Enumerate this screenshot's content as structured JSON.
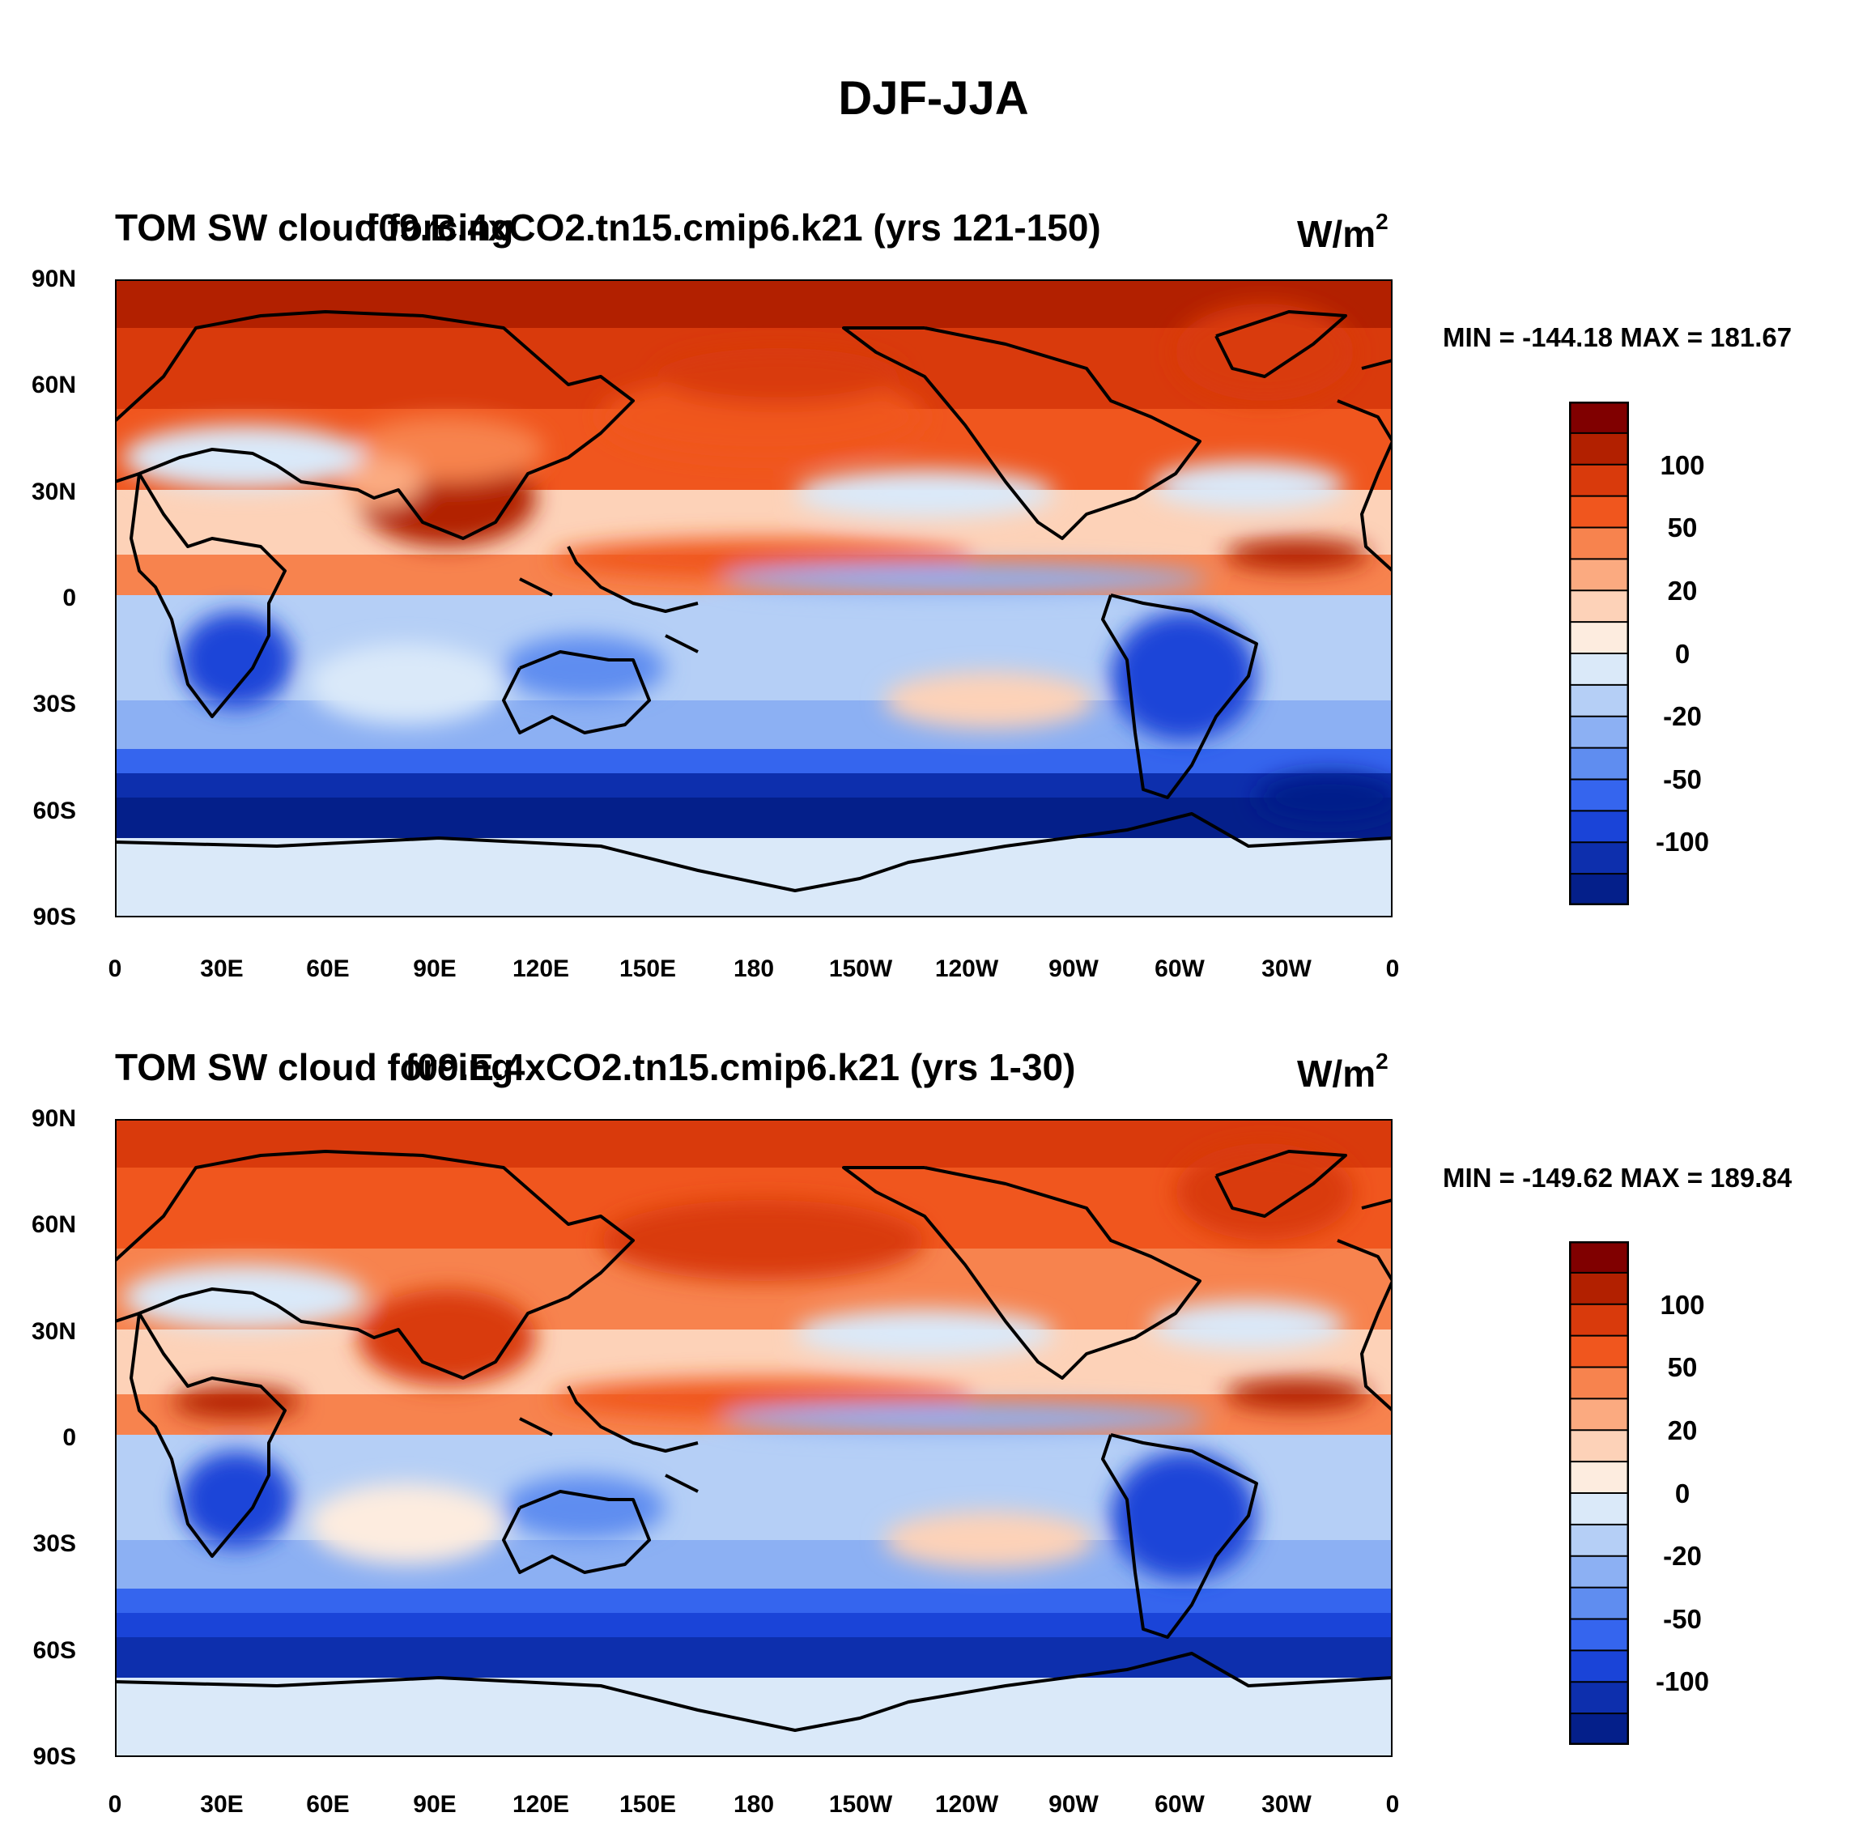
{
  "figure": {
    "title": "DJF-JJA"
  },
  "panels": [
    {
      "id": "top",
      "title_left": "TOM SW cloud forcing",
      "title_center": "f09.B.4xCO2.tn15.cmip6.k21 (yrs 121-150)",
      "units": "W/m",
      "units_sup": "2",
      "min_max": "MIN = -144.18 MAX = 181.67"
    },
    {
      "id": "bottom",
      "title_left": "TOM SW cloud forcing",
      "title_center": "f09.E.4xCO2.tn15.cmip6.k21 (yrs 1-30)",
      "units": "W/m",
      "units_sup": "2",
      "min_max": "MIN = -149.62 MAX = 189.84"
    }
  ],
  "axes": {
    "lat_ticks": [
      "90N",
      "60N",
      "30N",
      "0",
      "30S",
      "60S",
      "90S"
    ],
    "lon_ticks": [
      "0",
      "30E",
      "60E",
      "90E",
      "120E",
      "150E",
      "180",
      "150W",
      "120W",
      "90W",
      "60W",
      "30W",
      "0"
    ]
  },
  "colorbar": {
    "labels": [
      "100",
      "50",
      "20",
      "0",
      "-20",
      "-50",
      "-100"
    ],
    "colors": [
      "#800000",
      "#b22000",
      "#d93a0c",
      "#f0561e",
      "#f7834e",
      "#fbaa80",
      "#fdd2b8",
      "#fdecdf",
      "#dae9f9",
      "#b5cff6",
      "#8cb0f3",
      "#5f8df0",
      "#3565ee",
      "#1a44d8",
      "#0d2fad",
      "#041f8a"
    ]
  },
  "map_colors": {
    "land_outline": "#000000"
  }
}
